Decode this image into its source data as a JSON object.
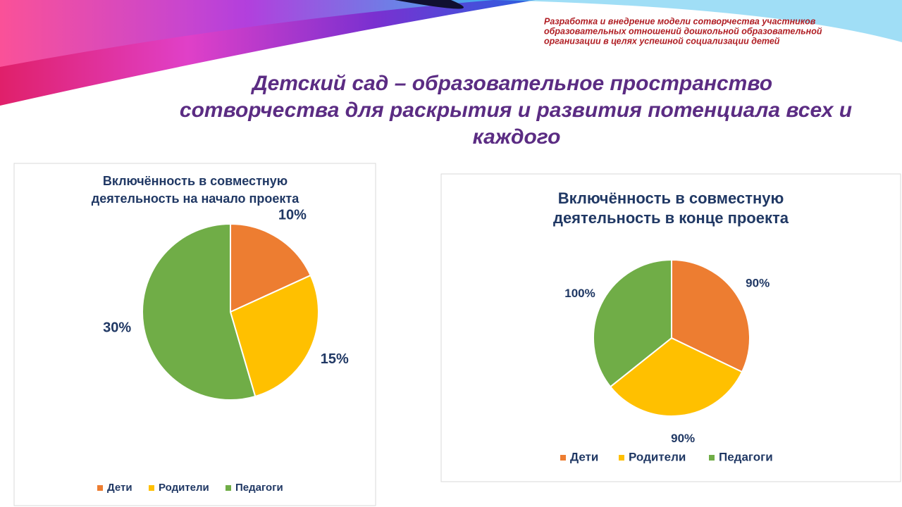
{
  "header": {
    "note_lines": [
      "Разработка и внедрение модели сотворчества участников",
      "образовательных отношений дошкольной образовательной",
      "организации в целях успешной социализации детей"
    ],
    "title_lines": [
      "Детский сад – образовательное пространство",
      "сотворчества для раскрытия и развития потенциала всех и",
      "каждого"
    ]
  },
  "chart_data": [
    {
      "type": "pie",
      "title": [
        "Включённость в совместную",
        "деятельность на начало проекта"
      ],
      "categories": [
        "Дети",
        "Родители",
        "Педагоги"
      ],
      "values": [
        10,
        15,
        30
      ],
      "value_labels": [
        "10%",
        "15%",
        "30%"
      ],
      "colors": [
        "#ed7d31",
        "#ffc000",
        "#70ad47"
      ],
      "legend": "bottom"
    },
    {
      "type": "pie",
      "title": [
        "Включённость в совместную",
        "деятельность в конце проекта"
      ],
      "categories": [
        "Дети",
        "Родители",
        "Педагоги"
      ],
      "values": [
        90,
        90,
        100
      ],
      "value_labels": [
        "90%",
        "90%",
        "100%"
      ],
      "colors": [
        "#ed7d31",
        "#ffc000",
        "#70ad47"
      ],
      "legend": "bottom"
    }
  ]
}
